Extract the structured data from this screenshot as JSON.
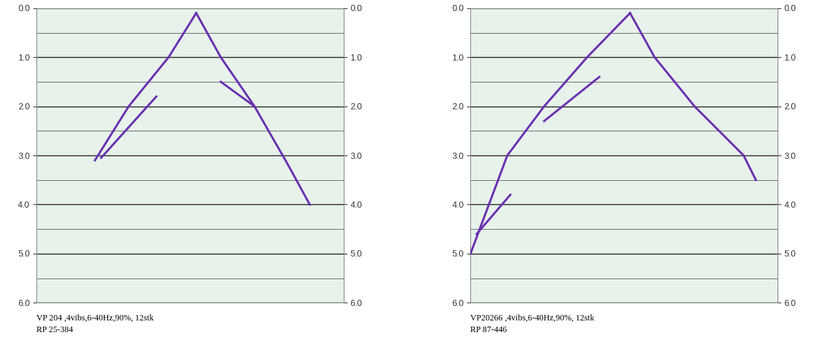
{
  "chart_data": [
    {
      "type": "line",
      "caption": [
        "VP 204 ,4vibs,6-40Hz,90%, 12stk",
        "RP 25-384"
      ],
      "xlim": [
        0,
        100
      ],
      "ylim": [
        6.0,
        0.0
      ],
      "yticks": [
        {
          "value": 0,
          "label": "0.0"
        },
        {
          "value": 1,
          "label": "1.0"
        },
        {
          "value": 2,
          "label": "2.0"
        },
        {
          "value": 3,
          "label": "3.0"
        },
        {
          "value": 4,
          "label": "4.0"
        },
        {
          "value": 5,
          "label": "5.0"
        },
        {
          "value": 6,
          "label": "6.0"
        }
      ],
      "tick_labels": "y",
      "grid": true,
      "series": [
        {
          "color": "#6a2fb0",
          "line_style": "solid",
          "x": [
            52,
            43,
            30,
            19
          ],
          "values": [
            0.1,
            1.0,
            2.0,
            3.1
          ]
        },
        {
          "color": "#6a2fb0",
          "line_style": "solid",
          "x": [
            52,
            60,
            71,
            82,
            89
          ],
          "values": [
            0.1,
            1.0,
            2.0,
            3.2,
            4.0
          ]
        },
        {
          "color": "#6a2fb0",
          "line_style": "solid",
          "x": [
            39,
            21
          ],
          "values": [
            1.8,
            3.05
          ]
        },
        {
          "color": "#6a2fb0",
          "line_style": "solid",
          "x": [
            60,
            71
          ],
          "values": [
            1.5,
            2.0
          ]
        }
      ]
    },
    {
      "type": "line",
      "caption": [
        "VP20266 ,4vibs,6-40Hz,90%, 12stk",
        "RP 87-446"
      ],
      "xlim": [
        0,
        100
      ],
      "ylim": [
        6.0,
        0.0
      ],
      "yticks": [
        {
          "value": 0,
          "label": "0.0"
        },
        {
          "value": 1,
          "label": "1.0"
        },
        {
          "value": 2,
          "label": "2.0"
        },
        {
          "value": 3,
          "label": "3.0"
        },
        {
          "value": 4,
          "label": "4.0"
        },
        {
          "value": 5,
          "label": "5.0"
        },
        {
          "value": 6,
          "label": "6.0"
        }
      ],
      "tick_labels": "y",
      "grid": true,
      "series": [
        {
          "color": "#6a2fb0",
          "line_style": "solid",
          "x": [
            52,
            38,
            24,
            12,
            0
          ],
          "values": [
            0.1,
            1.0,
            2.0,
            3.0,
            5.0
          ]
        },
        {
          "color": "#6a2fb0",
          "line_style": "solid",
          "x": [
            52,
            60,
            73,
            89,
            93
          ],
          "values": [
            0.1,
            1.0,
            2.0,
            3.0,
            3.5
          ]
        },
        {
          "color": "#6a2fb0",
          "line_style": "solid",
          "x": [
            42,
            24
          ],
          "values": [
            1.4,
            2.3
          ]
        },
        {
          "color": "#6a2fb0",
          "line_style": "solid",
          "x": [
            13,
            2
          ],
          "values": [
            3.8,
            4.6
          ]
        }
      ]
    }
  ]
}
